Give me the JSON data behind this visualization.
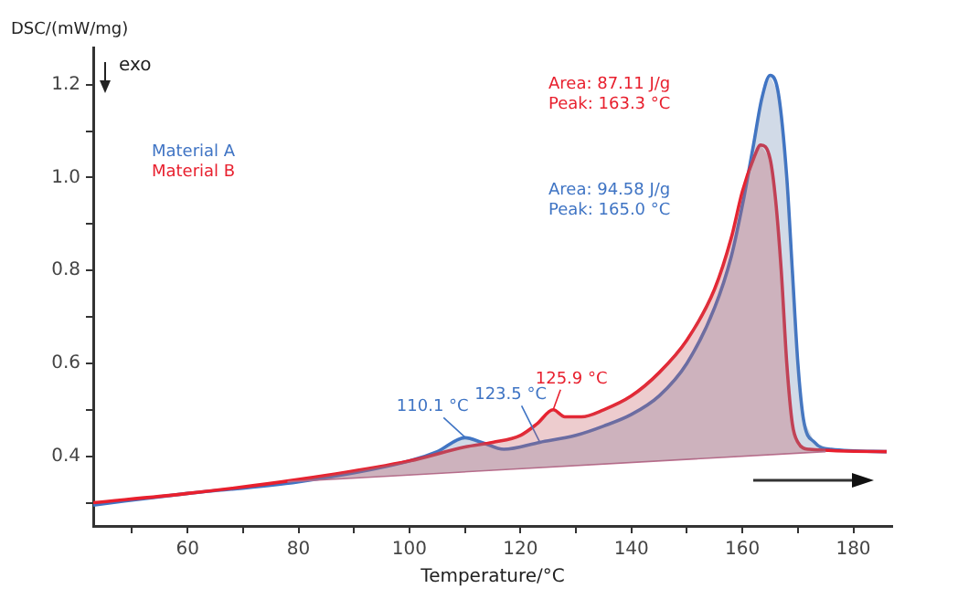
{
  "chart_data": {
    "type": "line",
    "xlabel": "Temperature/°C",
    "ylabel": "DSC/(mW/mg)",
    "xlim": [
      43,
      187
    ],
    "ylim": [
      0.25,
      1.28
    ],
    "xticks": [
      {
        "value": 50,
        "label": null
      },
      60,
      {
        "value": 70,
        "label": null
      },
      80,
      {
        "value": 90,
        "label": null
      },
      100,
      {
        "value": 110,
        "label": null
      },
      120,
      {
        "value": 130,
        "label": null
      },
      140,
      {
        "value": 150,
        "label": null
      },
      160,
      {
        "value": 170,
        "label": null
      },
      180
    ],
    "yticks": [
      {
        "value": 0.3,
        "label": null
      },
      {
        "value": 0.4,
        "label": "0.4"
      },
      {
        "value": 0.5,
        "label": null
      },
      {
        "value": 0.6,
        "label": "0.6"
      },
      {
        "value": 0.7,
        "label": null
      },
      {
        "value": 0.8,
        "label": "0.8"
      },
      {
        "value": 0.9,
        "label": null
      },
      {
        "value": 1.0,
        "label": "1.0"
      },
      {
        "value": 1.1,
        "label": null
      },
      {
        "value": 1.2,
        "label": "1.2"
      }
    ],
    "grid": false,
    "legend": "top left",
    "marker": "none",
    "line_style": "solid",
    "series": [
      {
        "name": "Material A",
        "color": "#3f74c4",
        "x": [
          43,
          60,
          80,
          100,
          105,
          110,
          113,
          117,
          123.5,
          130,
          135,
          140,
          145,
          150,
          155,
          158,
          160,
          162,
          163.5,
          165,
          166.5,
          168,
          169,
          170,
          171,
          173,
          176,
          186
        ],
        "values": [
          0.295,
          0.32,
          0.345,
          0.39,
          0.41,
          0.44,
          0.43,
          0.415,
          0.43,
          0.445,
          0.465,
          0.49,
          0.53,
          0.6,
          0.72,
          0.83,
          0.94,
          1.07,
          1.17,
          1.22,
          1.18,
          1.0,
          0.8,
          0.6,
          0.48,
          0.43,
          0.415,
          0.41
        ]
      },
      {
        "name": "Material B",
        "color": "#e8202e",
        "x": [
          43,
          60,
          80,
          100,
          110,
          115,
          120,
          123,
          125.9,
          128,
          131,
          135,
          140,
          145,
          150,
          155,
          158,
          160,
          162,
          163.3,
          165,
          166,
          167,
          168,
          169,
          170,
          172,
          186
        ],
        "values": [
          0.3,
          0.32,
          0.35,
          0.39,
          0.42,
          0.43,
          0.445,
          0.47,
          0.5,
          0.485,
          0.485,
          0.5,
          0.53,
          0.58,
          0.65,
          0.76,
          0.87,
          0.97,
          1.04,
          1.07,
          1.04,
          0.95,
          0.8,
          0.6,
          0.47,
          0.43,
          0.415,
          0.41
        ]
      },
      {
        "color": "#c07090",
        "x": [
          78,
          175
        ],
        "values": [
          0.345,
          0.41
        ]
      }
    ],
    "annotations": [
      "Area: 87.11 J/g",
      "Peak: 163.3 °C",
      "Area: 94.58 J/g",
      "Peak: 165.0 °C",
      {
        "text": "110.1 °C",
        "x": 110.1,
        "y": 0.44
      },
      {
        "text": "123.5 °C",
        "x": 123.5,
        "y": 0.43
      },
      {
        "text": "125.9 °C",
        "x": 125.9,
        "y": 0.5
      },
      "exo"
    ]
  }
}
